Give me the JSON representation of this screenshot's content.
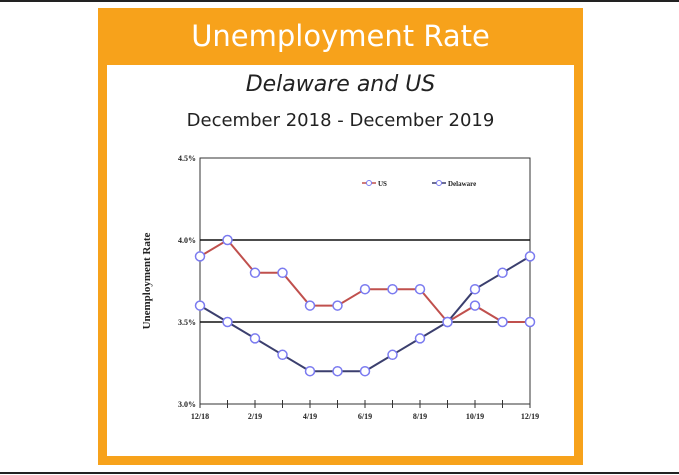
{
  "header": {
    "title": "Unemployment Rate"
  },
  "subtitle": "Delaware and US",
  "period": "December 2018 - December 2019",
  "colors": {
    "frame": "#f7a21b",
    "us": "#c0504d",
    "delaware": "#3b3f6e",
    "marker": "#7b7bf0"
  },
  "chart_data": {
    "type": "line",
    "title": "Unemployment Rate",
    "ylabel": "Unemployment Rate",
    "xlabel": "",
    "x": [
      "12/18",
      "1/19",
      "2/19",
      "3/19",
      "4/19",
      "5/19",
      "6/19",
      "7/19",
      "8/19",
      "9/19",
      "10/19",
      "11/19",
      "12/19"
    ],
    "xtick_labels": [
      "12/18",
      "2/19",
      "4/19",
      "6/19",
      "8/19",
      "10/19",
      "12/19"
    ],
    "ylim": [
      3.0,
      4.5
    ],
    "yticks": [
      "3.0%",
      "3.5%",
      "4.0%",
      "4.5%"
    ],
    "grid": "horizontal at 3.5% and 4.0%",
    "legend": "top-right",
    "series": [
      {
        "name": "US",
        "values": [
          3.9,
          4.0,
          3.8,
          3.8,
          3.6,
          3.6,
          3.7,
          3.7,
          3.7,
          3.5,
          3.6,
          3.5,
          3.5
        ]
      },
      {
        "name": "Delaware",
        "values": [
          3.6,
          3.5,
          3.4,
          3.3,
          3.2,
          3.2,
          3.2,
          3.3,
          3.4,
          3.5,
          3.7,
          3.8,
          3.9
        ]
      }
    ]
  }
}
